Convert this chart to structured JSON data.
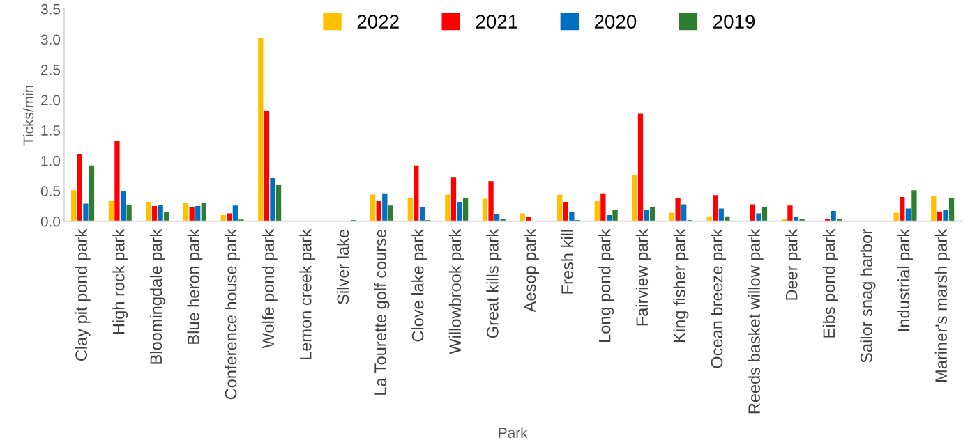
{
  "chart_data": {
    "type": "bar",
    "xlabel": "Park",
    "ylabel": "Ticks/min",
    "categories": [
      "Clay pit pond park",
      "High rock park",
      "Bloomingdale park",
      "Blue heron park",
      "Conference house park",
      "Wolfe pond park",
      "Lemon creek park",
      "Silver lake",
      "La Tourette golf course",
      "Clove lake park",
      "Willowbrook park",
      "Great kills park",
      "Aesop park",
      "Fresh kill",
      "Long pond park",
      "Fairview park",
      "King fisher park",
      "Ocean breeze park",
      "Reeds basket willow park",
      "Deer park",
      "Eibs pond park",
      "Sailor snag harbor",
      "Industrial park",
      "Mariner's marsh park"
    ],
    "series": [
      {
        "name": "2022",
        "color": "#ffc000",
        "values": [
          0.51,
          0.33,
          0.32,
          0.3,
          0.1,
          3.02,
          null,
          null,
          0.44,
          0.38,
          0.44,
          0.37,
          0.13,
          0.44,
          0.33,
          0.76,
          0.14,
          0.08,
          null,
          0.04,
          null,
          null,
          0.14,
          0.41
        ]
      },
      {
        "name": "2021",
        "color": "#ff0000",
        "values": [
          1.11,
          1.33,
          0.25,
          0.23,
          0.13,
          1.82,
          null,
          null,
          0.34,
          0.92,
          0.73,
          0.66,
          0.07,
          0.32,
          0.46,
          1.77,
          0.38,
          0.43,
          0.28,
          0.26,
          0.04,
          null,
          0.4,
          0.16
        ]
      },
      {
        "name": "2020",
        "color": "#0070c0",
        "values": [
          0.29,
          0.49,
          0.27,
          0.25,
          0.26,
          0.71,
          null,
          null,
          0.46,
          0.24,
          0.32,
          0.12,
          null,
          0.15,
          0.1,
          0.19,
          0.28,
          0.21,
          0.13,
          0.07,
          0.17,
          null,
          0.21,
          0.19
        ]
      },
      {
        "name": "2019",
        "color": "#2e7d32",
        "values": [
          0.92,
          0.27,
          0.15,
          0.3,
          0.03,
          0.6,
          null,
          0.02,
          0.26,
          0.02,
          0.38,
          0.04,
          null,
          0.02,
          0.18,
          0.24,
          0.02,
          0.08,
          0.23,
          0.04,
          0.04,
          null,
          0.51,
          0.38
        ]
      }
    ],
    "ylim": [
      0,
      3.5
    ],
    "yticks": [
      {
        "value": 0,
        "label": "0.0"
      },
      {
        "value": 0.5,
        "label": "0.5"
      },
      {
        "value": 1,
        "label": "1.0"
      },
      {
        "value": 1.5,
        "label": "1.5"
      },
      {
        "value": 2,
        "label": "2.0"
      },
      {
        "value": 2.5,
        "label": "2.5"
      },
      {
        "value": 3,
        "label": "3.0"
      },
      {
        "value": 3.5,
        "label": "3.5"
      }
    ],
    "grid": false,
    "legend": "top"
  }
}
